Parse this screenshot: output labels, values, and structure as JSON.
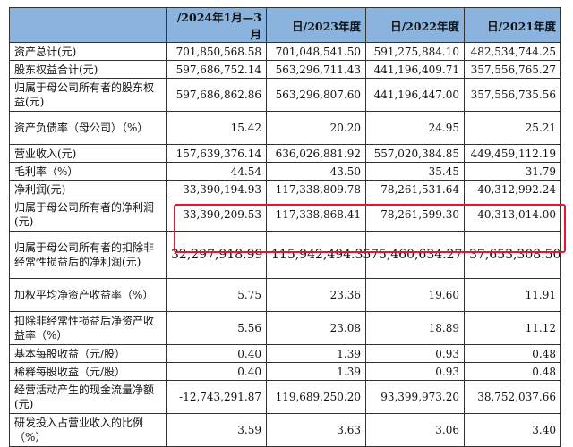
{
  "headers": [
    "",
    "/2024年1月—3月",
    "日/2023年度",
    "日/2022年度",
    "日/2021年度"
  ],
  "rows": [
    {
      "label": "资产总计(元)",
      "values": [
        "701,850,568.58",
        "701,048,541.50",
        "591,275,884.10",
        "482,534,744.25"
      ],
      "h": "h1"
    },
    {
      "label": "股东权益合计(元)",
      "values": [
        "597,686,752.14",
        "563,296,711.43",
        "441,196,409.71",
        "357,556,765.27"
      ],
      "h": "h1"
    },
    {
      "label": "归属于母公司所有者的股东权益(元)",
      "values": [
        "597,686,862.86",
        "563,296,807.60",
        "441,196,447.00",
        "357,556,735.56"
      ],
      "h": "h2"
    },
    {
      "label": "资产负债率（母公司）（%）",
      "values": [
        "15.42",
        "20.20",
        "24.95",
        "25.21"
      ],
      "h": "h2"
    },
    {
      "label": "营业收入(元)",
      "values": [
        "157,639,376.14",
        "636,026,881.92",
        "557,020,384.85",
        "449,459,112.19"
      ],
      "h": "h1"
    },
    {
      "label": "毛利率（%）",
      "values": [
        "44.54",
        "43.50",
        "35.45",
        "31.79"
      ],
      "h": "h1"
    },
    {
      "label": "净利润(元)",
      "values": [
        "33,390,194.93",
        "117,338,809.78",
        "78,261,531.64",
        "40,312,992.24"
      ],
      "h": "h1"
    },
    {
      "label": "归属于母公司所有者的净利润(元)",
      "values": [
        "33,390,209.53",
        "117,338,868.41",
        "78,261,599.30",
        "40,313,014.00"
      ],
      "h": "h2"
    },
    {
      "label": "归属于母公司所有者的扣除非经常性损益后的净利润(元)",
      "values": [
        "32,297,918.99",
        "115,942,494.35",
        "75,460,634.27",
        "37,653,308.50"
      ],
      "h": "h3",
      "big": true
    },
    {
      "label": "加权平均净资产收益率（%）",
      "values": [
        "5.75",
        "23.36",
        "19.60",
        "11.91"
      ],
      "h": "h2"
    },
    {
      "label": "扣除非经常性损益后净资产收益率（%）",
      "values": [
        "5.56",
        "23.08",
        "18.89",
        "11.12"
      ],
      "h": "h2"
    },
    {
      "label": "基本每股收益（元/股）",
      "values": [
        "0.40",
        "1.39",
        "0.93",
        "0.48"
      ],
      "h": "h1"
    },
    {
      "label": "稀释每股收益（元/股）",
      "values": [
        "0.40",
        "1.39",
        "0.93",
        "0.48"
      ],
      "h": "h1"
    },
    {
      "label": "经营活动产生的现金流量净额(元)",
      "values": [
        "-12,743,291.87",
        "119,689,250.20",
        "93,399,973.20",
        "38,752,037.66"
      ],
      "h": "h2"
    },
    {
      "label": "研发投入占营业收入的比例（%）",
      "values": [
        "3.59",
        "3.63",
        "3.06",
        "3.40"
      ],
      "h": "h2"
    }
  ]
}
